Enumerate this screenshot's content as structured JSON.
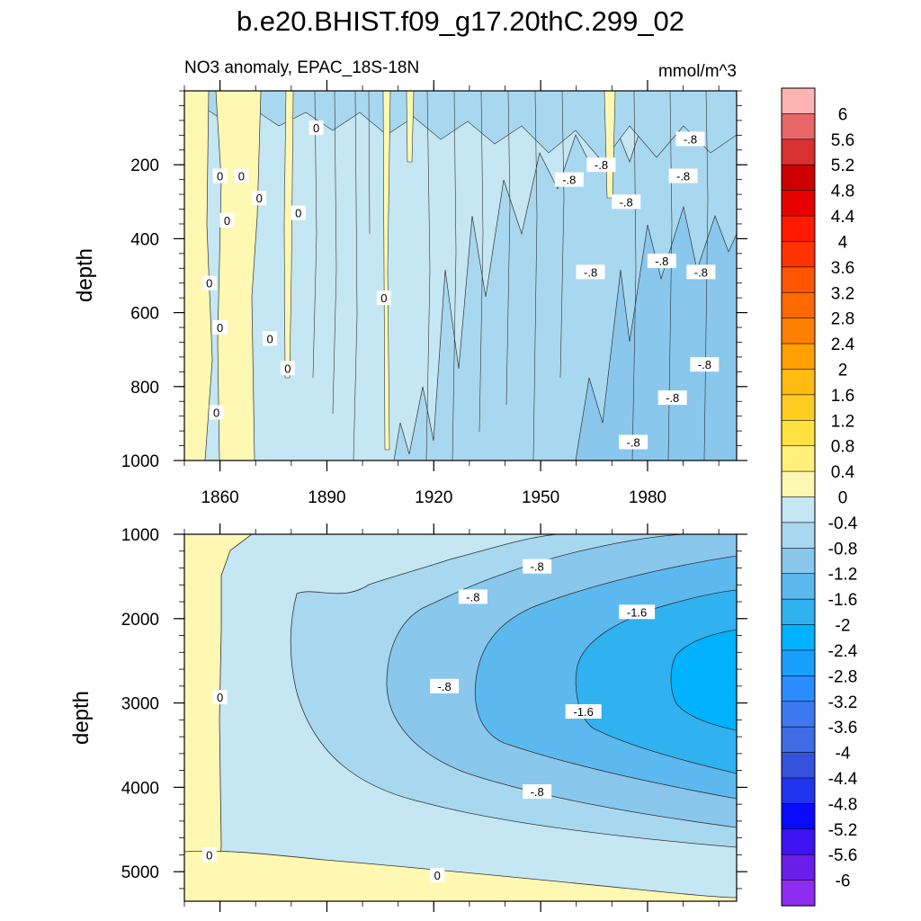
{
  "chart_data": {
    "type": "heatmap",
    "title": "b.e20.BHIST.f09_g17.20thC.299_02",
    "subtitle_left": "NO3 anomaly, EPAC_18S-18N",
    "subtitle_right": "mmol/m^3",
    "x": {
      "range": [
        1850,
        2005
      ],
      "ticks": [
        1860,
        1890,
        1920,
        1950,
        1980
      ]
    },
    "panels": [
      {
        "name": "upper",
        "ylabel": "depth",
        "ylim": [
          0,
          1000
        ],
        "yticks": [
          200,
          400,
          600,
          800,
          1000
        ],
        "contour_labels": [
          {
            "text": "0",
            "year": 1887,
            "depth": 100
          },
          {
            "text": "0",
            "year": 1860,
            "depth": 230
          },
          {
            "text": "0",
            "year": 1862,
            "depth": 350
          },
          {
            "text": "0",
            "year": 1857,
            "depth": 520
          },
          {
            "text": "0",
            "year": 1860,
            "depth": 640
          },
          {
            "text": "0",
            "year": 1866,
            "depth": 230
          },
          {
            "text": "0",
            "year": 1871,
            "depth": 290
          },
          {
            "text": "0",
            "year": 1882,
            "depth": 330
          },
          {
            "text": "0",
            "year": 1874,
            "depth": 670
          },
          {
            "text": "0",
            "year": 1879,
            "depth": 750
          },
          {
            "text": "0",
            "year": 1859,
            "depth": 870
          },
          {
            "text": "0",
            "year": 1906,
            "depth": 560
          },
          {
            "text": "-.8",
            "year": 1958,
            "depth": 240
          },
          {
            "text": "-.8",
            "year": 1967,
            "depth": 200
          },
          {
            "text": "-.8",
            "year": 1974,
            "depth": 300
          },
          {
            "text": "-.8",
            "year": 1990,
            "depth": 230
          },
          {
            "text": "-.8",
            "year": 1992,
            "depth": 130
          },
          {
            "text": "-.8",
            "year": 1964,
            "depth": 490
          },
          {
            "text": "-.8",
            "year": 1984,
            "depth": 460
          },
          {
            "text": "-.8",
            "year": 1995,
            "depth": 490
          },
          {
            "text": "-.8",
            "year": 1996,
            "depth": 740
          },
          {
            "text": "-.8",
            "year": 1987,
            "depth": 830
          },
          {
            "text": "-.8",
            "year": 1976,
            "depth": 950
          }
        ]
      },
      {
        "name": "lower",
        "ylabel": "depth",
        "ylim": [
          1000,
          5350
        ],
        "yticks": [
          1000,
          2000,
          3000,
          4000,
          5000
        ],
        "contour_labels": [
          {
            "text": "0",
            "year": 1860,
            "depth": 2930
          },
          {
            "text": "0",
            "year": 1857,
            "depth": 4800
          },
          {
            "text": "0",
            "year": 1921,
            "depth": 5040
          },
          {
            "text": "-.8",
            "year": 1923,
            "depth": 2800
          },
          {
            "text": "-.8",
            "year": 1949,
            "depth": 4050
          },
          {
            "text": "-.8",
            "year": 1931,
            "depth": 1740
          },
          {
            "text": "-.8",
            "year": 1949,
            "depth": 1380
          },
          {
            "text": "-1.6",
            "year": 1977,
            "depth": 1920
          },
          {
            "text": "-1.6",
            "year": 1962,
            "depth": 3100
          }
        ]
      }
    ],
    "colorbar": {
      "levels": [
        "6",
        "5.6",
        "5.2",
        "4.8",
        "4.4",
        "4",
        "3.6",
        "3.2",
        "2.8",
        "2.4",
        "2",
        "1.6",
        "1.2",
        "0.8",
        "0.4",
        "0",
        "-0.4",
        "-0.8",
        "-1.2",
        "-1.6",
        "-2",
        "-2.4",
        "-2.8",
        "-3.2",
        "-3.6",
        "-4",
        "-4.4",
        "-4.8",
        "-5.2",
        "-5.6",
        "-6"
      ],
      "colors": [
        "#ffb3b3",
        "#e86666",
        "#d93030",
        "#cc0000",
        "#e60000",
        "#ff1a00",
        "#ff3300",
        "#ff5500",
        "#ff6a00",
        "#ff8000",
        "#ff9f00",
        "#ffbb10",
        "#ffcc22",
        "#ffe240",
        "#fff07a",
        "#fff8b2",
        "#c5e6f3",
        "#a8d8ef",
        "#89c7ed",
        "#5bb9ef",
        "#2fb2ef",
        "#00b2ff",
        "#17a0ff",
        "#2b8cff",
        "#3d78f0",
        "#3e6ce6",
        "#3352dd",
        "#1f35ee",
        "#0a0aff",
        "#3e12f2",
        "#6a1eea",
        "#8e2cf0"
      ]
    }
  }
}
